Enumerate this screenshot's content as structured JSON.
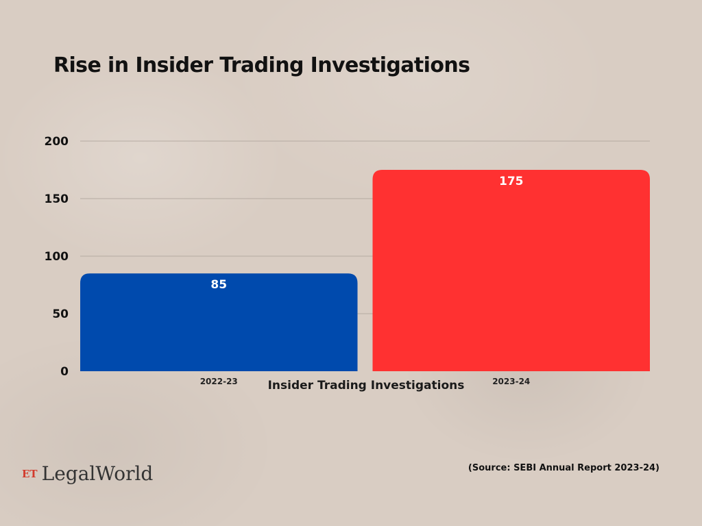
{
  "title": "Rise in Insider Trading Investigations",
  "chart_data": {
    "type": "bar",
    "categories": [
      "2022-23",
      "2023-24"
    ],
    "values": [
      85,
      175
    ],
    "data_labels": [
      "85",
      "175"
    ],
    "colors": [
      "#004aad",
      "#ff3131"
    ],
    "xlabel": "Insider Trading Investigations",
    "ylabel": "",
    "ylim": [
      0,
      200
    ],
    "yticks": [
      0,
      50,
      100,
      150,
      200
    ],
    "ytick_labels": [
      "0",
      "50",
      "100",
      "150",
      "200"
    ],
    "grid": true,
    "legend": "none"
  },
  "footer": {
    "logo_prefix": "ET",
    "logo_name": "LegalWorld",
    "source": "(Source: SEBI Annual Report 2023-24)"
  }
}
